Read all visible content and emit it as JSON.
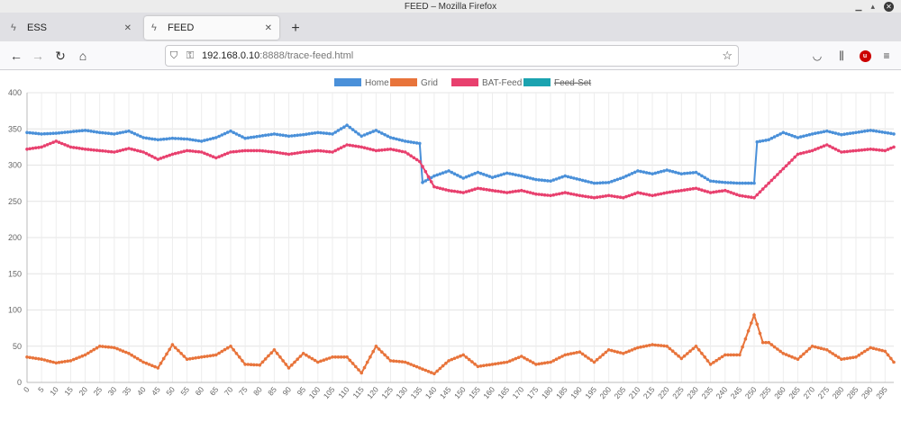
{
  "window": {
    "title": "FEED – Mozilla Firefox"
  },
  "tabs": [
    {
      "label": "ESS",
      "active": false
    },
    {
      "label": "FEED",
      "active": true
    }
  ],
  "url": {
    "host": "192.168.0.10",
    "rest": ":8888/trace-feed.html"
  },
  "icons": {
    "back": "arrow-left-icon",
    "forward": "arrow-right-icon",
    "reload": "reload-icon",
    "home": "home-icon",
    "shield": "shield-icon",
    "lock": "insecure-lock-icon",
    "bookmark": "star-icon",
    "pocket": "pocket-icon",
    "library": "library-icon",
    "extension": "ublock-icon",
    "menu": "hamburger-menu-icon",
    "tab": "bolt-icon"
  },
  "chart_data": {
    "type": "line",
    "x_start": 0,
    "x_step": 1,
    "x_count": 299,
    "x_tick_step": 5,
    "ylim": [
      0,
      400
    ],
    "y_ticks": [
      0,
      50,
      100,
      150,
      200,
      250,
      300,
      350,
      400
    ],
    "grid": true,
    "legend_position": "top",
    "series": [
      {
        "name": "Home",
        "color": "#4a90d9",
        "hidden": false,
        "segments": [
          [
            0,
            345
          ],
          [
            5,
            343
          ],
          [
            10,
            344
          ],
          [
            20,
            348
          ],
          [
            25,
            345
          ],
          [
            30,
            343
          ],
          [
            35,
            347
          ],
          [
            40,
            338
          ],
          [
            45,
            335
          ],
          [
            50,
            337
          ],
          [
            55,
            336
          ],
          [
            60,
            333
          ],
          [
            65,
            338
          ],
          [
            70,
            347
          ],
          [
            75,
            337
          ],
          [
            80,
            340
          ],
          [
            85,
            343
          ],
          [
            90,
            340
          ],
          [
            95,
            342
          ],
          [
            100,
            345
          ],
          [
            105,
            343
          ],
          [
            110,
            355
          ],
          [
            115,
            340
          ],
          [
            120,
            348
          ],
          [
            125,
            338
          ],
          [
            130,
            333
          ],
          [
            135,
            330
          ],
          [
            136,
            276
          ],
          [
            140,
            285
          ],
          [
            145,
            292
          ],
          [
            150,
            282
          ],
          [
            155,
            290
          ],
          [
            160,
            283
          ],
          [
            165,
            289
          ],
          [
            170,
            285
          ],
          [
            175,
            280
          ],
          [
            180,
            278
          ],
          [
            185,
            285
          ],
          [
            190,
            280
          ],
          [
            195,
            275
          ],
          [
            200,
            276
          ],
          [
            205,
            283
          ],
          [
            210,
            292
          ],
          [
            215,
            288
          ],
          [
            220,
            293
          ],
          [
            225,
            288
          ],
          [
            230,
            290
          ],
          [
            235,
            278
          ],
          [
            240,
            276
          ],
          [
            245,
            275
          ],
          [
            250,
            275
          ],
          [
            251,
            332
          ],
          [
            255,
            335
          ],
          [
            260,
            345
          ],
          [
            265,
            338
          ],
          [
            270,
            343
          ],
          [
            275,
            347
          ],
          [
            280,
            342
          ],
          [
            285,
            345
          ],
          [
            290,
            348
          ],
          [
            295,
            345
          ],
          [
            298,
            343
          ]
        ]
      },
      {
        "name": "Grid",
        "color": "#e8743b",
        "hidden": false,
        "segments": [
          [
            0,
            35
          ],
          [
            5,
            32
          ],
          [
            10,
            27
          ],
          [
            15,
            30
          ],
          [
            20,
            38
          ],
          [
            25,
            50
          ],
          [
            30,
            48
          ],
          [
            35,
            40
          ],
          [
            40,
            28
          ],
          [
            45,
            20
          ],
          [
            50,
            52
          ],
          [
            55,
            32
          ],
          [
            60,
            35
          ],
          [
            65,
            38
          ],
          [
            70,
            50
          ],
          [
            75,
            25
          ],
          [
            80,
            24
          ],
          [
            85,
            45
          ],
          [
            90,
            20
          ],
          [
            95,
            40
          ],
          [
            100,
            28
          ],
          [
            105,
            35
          ],
          [
            110,
            35
          ],
          [
            115,
            13
          ],
          [
            120,
            50
          ],
          [
            125,
            30
          ],
          [
            130,
            28
          ],
          [
            135,
            20
          ],
          [
            140,
            12
          ],
          [
            145,
            30
          ],
          [
            150,
            38
          ],
          [
            155,
            22
          ],
          [
            160,
            25
          ],
          [
            165,
            28
          ],
          [
            170,
            36
          ],
          [
            175,
            25
          ],
          [
            180,
            28
          ],
          [
            185,
            38
          ],
          [
            190,
            42
          ],
          [
            195,
            28
          ],
          [
            200,
            45
          ],
          [
            205,
            40
          ],
          [
            210,
            48
          ],
          [
            215,
            52
          ],
          [
            220,
            50
          ],
          [
            225,
            33
          ],
          [
            230,
            50
          ],
          [
            235,
            25
          ],
          [
            240,
            38
          ],
          [
            245,
            38
          ],
          [
            250,
            93
          ],
          [
            253,
            55
          ],
          [
            255,
            55
          ],
          [
            260,
            40
          ],
          [
            265,
            32
          ],
          [
            270,
            50
          ],
          [
            275,
            45
          ],
          [
            280,
            32
          ],
          [
            285,
            35
          ],
          [
            290,
            48
          ],
          [
            295,
            43
          ],
          [
            298,
            28
          ]
        ]
      },
      {
        "name": "BAT-Feed",
        "color": "#e8406e",
        "hidden": false,
        "segments": [
          [
            0,
            322
          ],
          [
            5,
            325
          ],
          [
            10,
            333
          ],
          [
            15,
            325
          ],
          [
            20,
            322
          ],
          [
            25,
            320
          ],
          [
            30,
            318
          ],
          [
            35,
            323
          ],
          [
            40,
            318
          ],
          [
            45,
            308
          ],
          [
            50,
            315
          ],
          [
            55,
            320
          ],
          [
            60,
            318
          ],
          [
            65,
            310
          ],
          [
            70,
            318
          ],
          [
            75,
            320
          ],
          [
            80,
            320
          ],
          [
            85,
            318
          ],
          [
            90,
            315
          ],
          [
            95,
            318
          ],
          [
            100,
            320
          ],
          [
            105,
            318
          ],
          [
            110,
            328
          ],
          [
            115,
            325
          ],
          [
            120,
            320
          ],
          [
            125,
            322
          ],
          [
            130,
            318
          ],
          [
            135,
            305
          ],
          [
            140,
            270
          ],
          [
            145,
            265
          ],
          [
            150,
            262
          ],
          [
            155,
            268
          ],
          [
            160,
            265
          ],
          [
            165,
            262
          ],
          [
            170,
            265
          ],
          [
            175,
            260
          ],
          [
            180,
            258
          ],
          [
            185,
            262
          ],
          [
            190,
            258
          ],
          [
            195,
            255
          ],
          [
            200,
            258
          ],
          [
            205,
            255
          ],
          [
            210,
            262
          ],
          [
            215,
            258
          ],
          [
            220,
            262
          ],
          [
            225,
            265
          ],
          [
            230,
            268
          ],
          [
            235,
            262
          ],
          [
            240,
            265
          ],
          [
            245,
            258
          ],
          [
            250,
            255
          ],
          [
            255,
            275
          ],
          [
            260,
            295
          ],
          [
            265,
            315
          ],
          [
            270,
            320
          ],
          [
            275,
            328
          ],
          [
            280,
            318
          ],
          [
            285,
            320
          ],
          [
            290,
            322
          ],
          [
            295,
            320
          ],
          [
            298,
            325
          ]
        ]
      },
      {
        "name": "Feed-Set",
        "color": "#1ba3b0",
        "hidden": true,
        "segments": []
      }
    ]
  }
}
